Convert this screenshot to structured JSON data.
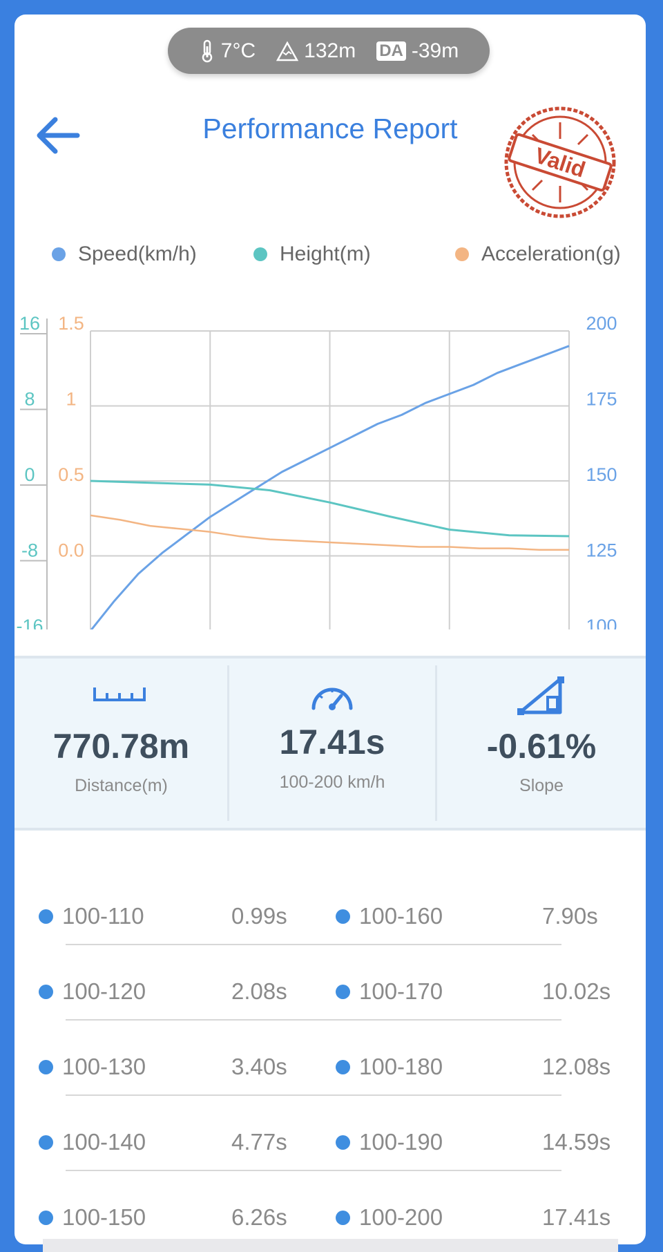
{
  "status": {
    "temperature": "7°C",
    "altitude": "132m",
    "da_badge": "DA",
    "density_altitude": "-39m"
  },
  "header": {
    "title": "Performance Report",
    "stamp_text": "Valid"
  },
  "legend": [
    {
      "label": "Speed(km/h)",
      "color": "#6aa2e6"
    },
    {
      "label": "Height(m)",
      "color": "#5cc5c2"
    },
    {
      "label": "Acceleration(g)",
      "color": "#f3b583"
    }
  ],
  "chart_data": {
    "type": "line",
    "x": [
      0,
      1,
      2,
      3,
      4
    ],
    "axes": {
      "height_ticks": [
        "16",
        "8",
        "0",
        "-8",
        "-16"
      ],
      "accel_ticks": [
        "1.5",
        "1",
        "0.5",
        "0.0"
      ],
      "speed_ticks": [
        "200",
        "175",
        "150",
        "125",
        "100"
      ],
      "height_range": [
        -16,
        16
      ],
      "accel_range": [
        -0.5,
        1.5
      ],
      "speed_range": [
        100,
        200
      ]
    },
    "series": [
      {
        "name": "Speed(km/h)",
        "axis": "speed",
        "color": "#6aa2e6",
        "x": [
          0,
          0.2,
          0.4,
          0.6,
          0.8,
          1.0,
          1.2,
          1.4,
          1.6,
          1.8,
          2.0,
          2.2,
          2.4,
          2.6,
          2.8,
          3.0,
          3.2,
          3.4,
          3.6,
          3.8,
          4.0
        ],
        "values": [
          100,
          110,
          119,
          126,
          132,
          138,
          143,
          148,
          153,
          157,
          161,
          165,
          169,
          172,
          176,
          179,
          182,
          186,
          189,
          192,
          195
        ]
      },
      {
        "name": "Height(m)",
        "axis": "height",
        "color": "#5cc5c2",
        "x": [
          0,
          0.5,
          1.0,
          1.5,
          2.0,
          2.5,
          3.0,
          3.5,
          4.0
        ],
        "values": [
          0,
          -0.2,
          -0.4,
          -1.0,
          -2.3,
          -3.8,
          -5.2,
          -5.8,
          -5.9
        ]
      },
      {
        "name": "Acceleration(g)",
        "axis": "accel",
        "color": "#f3b583",
        "x": [
          0,
          0.25,
          0.5,
          0.75,
          1.0,
          1.25,
          1.5,
          1.75,
          2.0,
          2.25,
          2.5,
          2.75,
          3.0,
          3.25,
          3.5,
          3.75,
          4.0
        ],
        "values": [
          0.27,
          0.24,
          0.2,
          0.18,
          0.16,
          0.13,
          0.11,
          0.1,
          0.09,
          0.08,
          0.07,
          0.06,
          0.06,
          0.05,
          0.05,
          0.04,
          0.04
        ]
      }
    ],
    "grid": true
  },
  "stats": [
    {
      "value": "770.78m",
      "label": "Distance(m)",
      "icon": "ruler-icon"
    },
    {
      "value": "17.41s",
      "label": "100-200 km/h",
      "icon": "speedometer-icon"
    },
    {
      "value": "-0.61%",
      "label": "Slope",
      "icon": "slope-icon"
    }
  ],
  "splits": [
    {
      "left": {
        "range": "100-110",
        "time": "0.99s"
      },
      "right": {
        "range": "100-160",
        "time": "7.90s"
      }
    },
    {
      "left": {
        "range": "100-120",
        "time": "2.08s"
      },
      "right": {
        "range": "100-170",
        "time": "10.02s"
      }
    },
    {
      "left": {
        "range": "100-130",
        "time": "3.40s"
      },
      "right": {
        "range": "100-180",
        "time": "12.08s"
      }
    },
    {
      "left": {
        "range": "100-140",
        "time": "4.77s"
      },
      "right": {
        "range": "100-190",
        "time": "14.59s"
      }
    },
    {
      "left": {
        "range": "100-150",
        "time": "6.26s"
      },
      "right": {
        "range": "100-200",
        "time": "17.41s"
      }
    }
  ]
}
